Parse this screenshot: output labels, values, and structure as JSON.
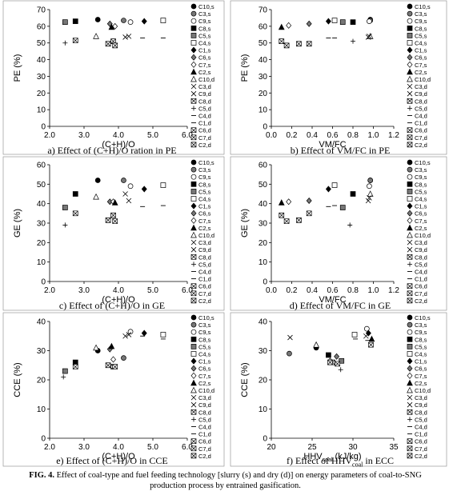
{
  "figure": {
    "caption_label": "FIG. 4.",
    "caption_text": "Effect of coal-type and fuel feeding technology [slurry (s) and dry (d)] on energy parameters of coal-to-SNG production process by entrained gasification.",
    "panel_captions": [
      "a) Effect of (C+H)/O ration in PE",
      "b) Effect of VM/FC in PE",
      "c) Effect of (C+H)/O in GE",
      "d) Effect of VM/FC in GE",
      "e) Effect of (C+H)/O in CCE",
      "f) Effect of HHV"
    ],
    "panel_f_caption_sub": "coal",
    "panel_f_caption_tail": " in ECC"
  },
  "legend": [
    "C10,s",
    "C3,s",
    "C9,s",
    "C8,s",
    "C5,s",
    "C4,s",
    "C1,s",
    "C6,s",
    "C7,s",
    "C2,s",
    "C10,d",
    "C3,d",
    "C9,d",
    "C8,d",
    "C5,d",
    "C4,d",
    "C1,d",
    "C6,d",
    "C7,d",
    "C2,d"
  ],
  "chart_data": [
    {
      "id": "a",
      "type": "scatter",
      "xlabel": "(C+H)/O",
      "ylabel": "PE (%)",
      "xlim": [
        2.0,
        6.0
      ],
      "ylim": [
        0,
        70
      ],
      "xticks": [
        "2.0",
        "3.0",
        "4.0",
        "5.0",
        "6.0"
      ],
      "yticks": [
        "0",
        "10",
        "20",
        "30",
        "40",
        "50",
        "60",
        "70"
      ],
      "series": [
        {
          "name": "C10,s",
          "x": 3.4,
          "y": 64
        },
        {
          "name": "C3,s",
          "x": 4.15,
          "y": 63.5
        },
        {
          "name": "C9,s",
          "x": 4.35,
          "y": 62.5
        },
        {
          "name": "C8,s",
          "x": 2.75,
          "y": 63
        },
        {
          "name": "C5,s",
          "x": 2.45,
          "y": 62.5
        },
        {
          "name": "C4,s",
          "x": 5.3,
          "y": 63.5
        },
        {
          "name": "C1,s",
          "x": 4.75,
          "y": 63
        },
        {
          "name": "C6,s",
          "x": 3.75,
          "y": 61.5
        },
        {
          "name": "C7,s",
          "x": 3.9,
          "y": 60
        },
        {
          "name": "C2,s",
          "x": 3.8,
          "y": 59.5
        },
        {
          "name": "C10,d",
          "x": 3.35,
          "y": 54
        },
        {
          "name": "C3,d",
          "x": 4.3,
          "y": 54
        },
        {
          "name": "C9,d",
          "x": 4.2,
          "y": 53.5
        },
        {
          "name": "C8,d",
          "x": 3.7,
          "y": 49.5
        },
        {
          "name": "C5,d",
          "x": 2.45,
          "y": 50
        },
        {
          "name": "C4,d",
          "x": 5.3,
          "y": 53
        },
        {
          "name": "C1,d",
          "x": 4.7,
          "y": 53
        },
        {
          "name": "C6,d",
          "x": 3.85,
          "y": 51
        },
        {
          "name": "C7,d",
          "x": 2.75,
          "y": 51.5
        },
        {
          "name": "C2,d",
          "x": 3.9,
          "y": 48.5
        }
      ]
    },
    {
      "id": "b",
      "type": "scatter",
      "xlabel": "VM/FC",
      "ylabel": "PE (%)",
      "xlim": [
        0,
        1.2
      ],
      "ylim": [
        0,
        70
      ],
      "xticks": [
        "0.0",
        "0.2",
        "0.4",
        "0.6",
        "0.8",
        "1.0",
        "1.2"
      ],
      "yticks": [
        "0",
        "10",
        "20",
        "30",
        "40",
        "50",
        "60",
        "70"
      ],
      "series": [
        {
          "name": "C10,s",
          "x": 0.97,
          "y": 64
        },
        {
          "name": "C3,s",
          "x": 0.97,
          "y": 63.5
        },
        {
          "name": "C9,s",
          "x": 0.96,
          "y": 63
        },
        {
          "name": "C8,s",
          "x": 0.8,
          "y": 62.5
        },
        {
          "name": "C5,s",
          "x": 0.7,
          "y": 62.5
        },
        {
          "name": "C4,s",
          "x": 0.62,
          "y": 63.5
        },
        {
          "name": "C1,s",
          "x": 0.56,
          "y": 63
        },
        {
          "name": "C6,s",
          "x": 0.37,
          "y": 61.5
        },
        {
          "name": "C7,s",
          "x": 0.17,
          "y": 60.5
        },
        {
          "name": "C2,s",
          "x": 0.1,
          "y": 59.5
        },
        {
          "name": "C10,d",
          "x": 0.97,
          "y": 54
        },
        {
          "name": "C3,d",
          "x": 0.96,
          "y": 54
        },
        {
          "name": "C9,d",
          "x": 0.95,
          "y": 53.5
        },
        {
          "name": "C8,d",
          "x": 0.27,
          "y": 49.5
        },
        {
          "name": "C5,d",
          "x": 0.8,
          "y": 51
        },
        {
          "name": "C4,d",
          "x": 0.62,
          "y": 53
        },
        {
          "name": "C1,d",
          "x": 0.56,
          "y": 53
        },
        {
          "name": "C6,d",
          "x": 0.1,
          "y": 51
        },
        {
          "name": "C7,d",
          "x": 0.37,
          "y": 49.5
        },
        {
          "name": "C2,d",
          "x": 0.15,
          "y": 48.5
        }
      ]
    },
    {
      "id": "c",
      "type": "scatter",
      "xlabel": "(C+H)/O",
      "ylabel": "GE (%)",
      "xlim": [
        2.0,
        6.0
      ],
      "ylim": [
        0,
        60
      ],
      "xticks": [
        "2.0",
        "3.0",
        "4.0",
        "5.0",
        "6.0"
      ],
      "yticks": [
        "0",
        "10",
        "20",
        "30",
        "40",
        "50",
        "60"
      ],
      "series": [
        {
          "name": "C10,s",
          "x": 3.4,
          "y": 52
        },
        {
          "name": "C3,s",
          "x": 4.15,
          "y": 52
        },
        {
          "name": "C9,s",
          "x": 4.35,
          "y": 49
        },
        {
          "name": "C8,s",
          "x": 2.75,
          "y": 45
        },
        {
          "name": "C5,s",
          "x": 2.45,
          "y": 38
        },
        {
          "name": "C4,s",
          "x": 5.3,
          "y": 49.5
        },
        {
          "name": "C1,s",
          "x": 4.75,
          "y": 47.5
        },
        {
          "name": "C6,s",
          "x": 3.75,
          "y": 41
        },
        {
          "name": "C7,s",
          "x": 3.85,
          "y": 41
        },
        {
          "name": "C2,s",
          "x": 3.9,
          "y": 40.5
        },
        {
          "name": "C10,d",
          "x": 3.35,
          "y": 43.5
        },
        {
          "name": "C3,d",
          "x": 4.2,
          "y": 45
        },
        {
          "name": "C9,d",
          "x": 4.3,
          "y": 41.5
        },
        {
          "name": "C8,d",
          "x": 3.7,
          "y": 31.5
        },
        {
          "name": "C5,d",
          "x": 2.45,
          "y": 29
        },
        {
          "name": "C4,d",
          "x": 5.3,
          "y": 39
        },
        {
          "name": "C1,d",
          "x": 4.7,
          "y": 38.5
        },
        {
          "name": "C6,d",
          "x": 3.85,
          "y": 34
        },
        {
          "name": "C7,d",
          "x": 2.75,
          "y": 35
        },
        {
          "name": "C2,d",
          "x": 3.9,
          "y": 31
        }
      ]
    },
    {
      "id": "d",
      "type": "scatter",
      "xlabel": "VM/FC",
      "ylabel": "GE (%)",
      "xlim": [
        0,
        1.2
      ],
      "ylim": [
        0,
        60
      ],
      "xticks": [
        "0.0",
        "0.2",
        "0.4",
        "0.6",
        "0.8",
        "1.0",
        "1.2"
      ],
      "yticks": [
        "0",
        "10",
        "20",
        "30",
        "40",
        "50",
        "60"
      ],
      "series": [
        {
          "name": "C10,s",
          "x": 0.97,
          "y": 52
        },
        {
          "name": "C3,s",
          "x": 0.97,
          "y": 52
        },
        {
          "name": "C9,s",
          "x": 0.96,
          "y": 49
        },
        {
          "name": "C8,s",
          "x": 0.8,
          "y": 45
        },
        {
          "name": "C5,s",
          "x": 0.7,
          "y": 38
        },
        {
          "name": "C4,s",
          "x": 0.62,
          "y": 49.5
        },
        {
          "name": "C1,s",
          "x": 0.56,
          "y": 47.5
        },
        {
          "name": "C6,s",
          "x": 0.37,
          "y": 41.5
        },
        {
          "name": "C7,s",
          "x": 0.17,
          "y": 41
        },
        {
          "name": "C2,s",
          "x": 0.1,
          "y": 40.5
        },
        {
          "name": "C10,d",
          "x": 0.97,
          "y": 45
        },
        {
          "name": "C3,d",
          "x": 0.96,
          "y": 43
        },
        {
          "name": "C9,d",
          "x": 0.95,
          "y": 41.5
        },
        {
          "name": "C8,d",
          "x": 0.27,
          "y": 31.5
        },
        {
          "name": "C5,d",
          "x": 0.77,
          "y": 29
        },
        {
          "name": "C4,d",
          "x": 0.62,
          "y": 39
        },
        {
          "name": "C1,d",
          "x": 0.56,
          "y": 38.5
        },
        {
          "name": "C6,d",
          "x": 0.1,
          "y": 34
        },
        {
          "name": "C7,d",
          "x": 0.37,
          "y": 35
        },
        {
          "name": "C2,d",
          "x": 0.15,
          "y": 31
        }
      ]
    },
    {
      "id": "e",
      "type": "scatter",
      "xlabel": "(C+H)/O",
      "ylabel": "CCE (%)",
      "xlim": [
        2.0,
        6.0
      ],
      "ylim": [
        0,
        40
      ],
      "xticks": [
        "2.0",
        "3.0",
        "4.0",
        "5.0",
        "6.0"
      ],
      "yticks": [
        "0",
        "10",
        "20",
        "30",
        "40"
      ],
      "series": [
        {
          "name": "C10,s",
          "x": 3.4,
          "y": 30
        },
        {
          "name": "C3,s",
          "x": 4.15,
          "y": 27.5
        },
        {
          "name": "C9,s",
          "x": 4.35,
          "y": 36.5
        },
        {
          "name": "C8,s",
          "x": 2.75,
          "y": 26
        },
        {
          "name": "C5,s",
          "x": 2.45,
          "y": 23
        },
        {
          "name": "C4,s",
          "x": 5.3,
          "y": 35.5
        },
        {
          "name": "C1,s",
          "x": 4.75,
          "y": 36
        },
        {
          "name": "C6,s",
          "x": 3.75,
          "y": 30.5
        },
        {
          "name": "C7,s",
          "x": 3.85,
          "y": 27
        },
        {
          "name": "C2,s",
          "x": 3.8,
          "y": 31.5
        },
        {
          "name": "C10,d",
          "x": 3.35,
          "y": 31
        },
        {
          "name": "C3,d",
          "x": 4.2,
          "y": 35
        },
        {
          "name": "C9,d",
          "x": 4.3,
          "y": 35.5
        },
        {
          "name": "C8,d",
          "x": 3.7,
          "y": 25
        },
        {
          "name": "C5,d",
          "x": 2.4,
          "y": 21
        },
        {
          "name": "C4,d",
          "x": 5.3,
          "y": 34
        },
        {
          "name": "C1,d",
          "x": 4.7,
          "y": 35
        },
        {
          "name": "C6,d",
          "x": 3.85,
          "y": 24.5
        },
        {
          "name": "C7,d",
          "x": 2.75,
          "y": 24.5
        },
        {
          "name": "C2,d",
          "x": 3.9,
          "y": 24.5
        }
      ]
    },
    {
      "id": "f",
      "type": "scatter",
      "xlabel": "HHV",
      "xlabel_sub": "coal",
      "xlabel_tail": " (kJ/kg)",
      "ylabel": "CCE (%)",
      "xlim": [
        20,
        35
      ],
      "ylim": [
        0,
        40
      ],
      "xticks": [
        "20",
        "25",
        "30",
        "35"
      ],
      "yticks": [
        "0",
        "10",
        "20",
        "30",
        "40"
      ],
      "series": [
        {
          "name": "C10,s",
          "x": 25.5,
          "y": 31
        },
        {
          "name": "C3,s",
          "x": 22.2,
          "y": 29
        },
        {
          "name": "C9,s",
          "x": 31.7,
          "y": 37.5
        },
        {
          "name": "C8,s",
          "x": 27,
          "y": 28.5
        },
        {
          "name": "C5,s",
          "x": 28.6,
          "y": 26.5
        },
        {
          "name": "C4,s",
          "x": 30.2,
          "y": 35.5
        },
        {
          "name": "C1,s",
          "x": 31.9,
          "y": 36
        },
        {
          "name": "C6,s",
          "x": 28,
          "y": 28
        },
        {
          "name": "C7,s",
          "x": 27.2,
          "y": 26.5
        },
        {
          "name": "C2,s",
          "x": 32.3,
          "y": 34
        },
        {
          "name": "C10,d",
          "x": 25.5,
          "y": 32
        },
        {
          "name": "C3,d",
          "x": 31.6,
          "y": 35
        },
        {
          "name": "C9,d",
          "x": 22.3,
          "y": 34.5
        },
        {
          "name": "C8,d",
          "x": 27.5,
          "y": 26
        },
        {
          "name": "C5,d",
          "x": 28.5,
          "y": 23.5
        },
        {
          "name": "C4,d",
          "x": 30.3,
          "y": 34
        },
        {
          "name": "C1,d",
          "x": 31.8,
          "y": 33.5
        },
        {
          "name": "C6,d",
          "x": 28.1,
          "y": 25.5
        },
        {
          "name": "C7,d",
          "x": 27.2,
          "y": 26
        },
        {
          "name": "C2,d",
          "x": 32.2,
          "y": 32
        }
      ]
    }
  ]
}
